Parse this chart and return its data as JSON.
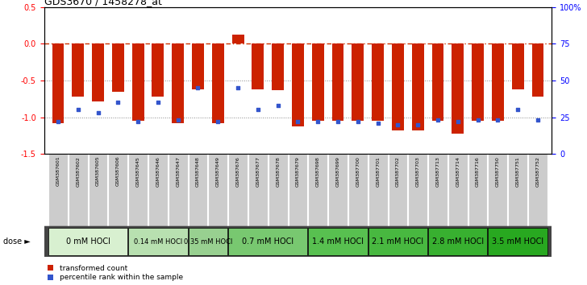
{
  "title": "GDS3670 / 1458278_at",
  "samples": [
    "GSM387601",
    "GSM387602",
    "GSM387605",
    "GSM387606",
    "GSM387645",
    "GSM387646",
    "GSM387647",
    "GSM387648",
    "GSM387649",
    "GSM387676",
    "GSM387677",
    "GSM387678",
    "GSM387679",
    "GSM387698",
    "GSM387699",
    "GSM387700",
    "GSM387701",
    "GSM387702",
    "GSM387703",
    "GSM387713",
    "GSM387714",
    "GSM387716",
    "GSM387750",
    "GSM387751",
    "GSM387752"
  ],
  "bar_values": [
    -1.08,
    -0.72,
    -0.78,
    -0.65,
    -1.05,
    -0.72,
    -1.08,
    -0.62,
    -1.08,
    0.12,
    -0.62,
    -0.63,
    -1.12,
    -1.05,
    -1.05,
    -1.05,
    -1.05,
    -1.18,
    -1.18,
    -1.05,
    -1.22,
    -1.05,
    -1.05,
    -0.62,
    -0.72
  ],
  "blue_pct": [
    22,
    30,
    28,
    35,
    22,
    35,
    23,
    45,
    22,
    45,
    30,
    33,
    22,
    22,
    22,
    22,
    21,
    20,
    20,
    23,
    22,
    23,
    23,
    30,
    23
  ],
  "dose_groups": [
    {
      "label": "0 mM HOCl",
      "start": 0,
      "end": 4,
      "color": "#d8f0d0",
      "fontsize": 7
    },
    {
      "label": "0.14 mM HOCl",
      "start": 4,
      "end": 7,
      "color": "#b8e0b0",
      "fontsize": 6
    },
    {
      "label": "0.35 mM HOCl",
      "start": 7,
      "end": 9,
      "color": "#98d090",
      "fontsize": 6
    },
    {
      "label": "0.7 mM HOCl",
      "start": 9,
      "end": 13,
      "color": "#78c870",
      "fontsize": 7
    },
    {
      "label": "1.4 mM HOCl",
      "start": 13,
      "end": 16,
      "color": "#58c050",
      "fontsize": 7
    },
    {
      "label": "2.1 mM HOCl",
      "start": 16,
      "end": 19,
      "color": "#48b840",
      "fontsize": 7
    },
    {
      "label": "2.8 mM HOCl",
      "start": 19,
      "end": 22,
      "color": "#38b030",
      "fontsize": 7
    },
    {
      "label": "3.5 mM HOCl",
      "start": 22,
      "end": 25,
      "color": "#28a820",
      "fontsize": 7
    }
  ],
  "ylim": [
    -1.5,
    0.5
  ],
  "yticks_left": [
    -1.5,
    -1.0,
    -0.5,
    0.0,
    0.5
  ],
  "yticks_right": [
    0,
    25,
    50,
    75,
    100
  ],
  "bar_color": "#cc2200",
  "blue_color": "#3355cc",
  "hline0_color": "#cc3300",
  "hline_dot_color": "#888888",
  "bg_color": "#ffffff",
  "label_bg": "#cccccc"
}
